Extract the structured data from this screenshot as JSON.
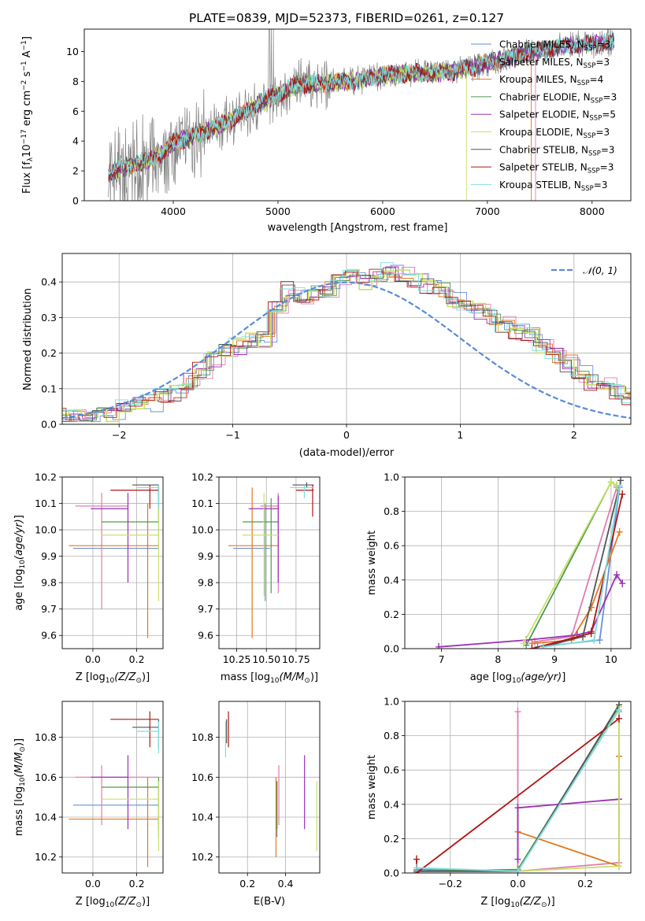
{
  "title": "PLATE=0839, MJD=52373, FIBERID=0261, z=0.127",
  "colors": {
    "data": "#808080",
    "chabrier_miles": "#6a8fd8",
    "salpeter_miles": "#e07cb0",
    "kroupa_miles": "#e07a20",
    "chabrier_elodie": "#4d9a4d",
    "salpeter_elodie": "#9a30b4",
    "kroupa_elodie": "#c8e06a",
    "chabrier_stelib": "#555555",
    "salpeter_stelib": "#b01515",
    "kroupa_stelib": "#7fdede",
    "normal": "#5b8bd6",
    "grid": "#b0b0b0"
  },
  "chart_data": [
    {
      "id": "spectrum",
      "type": "line",
      "xlabel": "wavelength [Angstrom, rest frame]",
      "ylabel_main": "Flux [f",
      "ylabel_sub": "λ",
      "ylabel_rest": "10",
      "ylabel_exp1": "−17",
      "ylabel_unit": " erg cm",
      "ylabel_exp2": "−2",
      "ylabel_s": " s",
      "ylabel_exp3": "−1",
      "ylabel_a": " A",
      "ylabel_exp4": "−1",
      "ylabel_end": "]",
      "xlim": [
        3150,
        8370
      ],
      "ylim": [
        0,
        11.5
      ],
      "xticks": [
        4000,
        5000,
        6000,
        7000,
        8000
      ],
      "yticks": [
        0,
        2,
        4,
        6,
        8,
        10
      ],
      "xtick_labels": [
        "4000",
        "5000",
        "6000",
        "7000",
        "8000"
      ],
      "ytick_labels": [
        "0",
        "2",
        "4",
        "6",
        "8",
        "10"
      ],
      "legend": [
        {
          "label": "Chabrier MILES, N",
          "sub": "SSP",
          "val": "=3",
          "color": "chabrier_miles"
        },
        {
          "label": "Salpeter MILES, N",
          "sub": "SSP",
          "val": "=3",
          "color": "salpeter_miles"
        },
        {
          "label": "Kroupa MILES, N",
          "sub": "SSP",
          "val": "=4",
          "color": "kroupa_miles"
        },
        {
          "label": "Chabrier ELODIE, N",
          "sub": "SSP",
          "val": "=3",
          "color": "chabrier_elodie"
        },
        {
          "label": "Salpeter ELODIE, N",
          "sub": "SSP",
          "val": "=5",
          "color": "salpeter_elodie"
        },
        {
          "label": "Kroupa ELODIE, N",
          "sub": "SSP",
          "val": "=3",
          "color": "kroupa_elodie"
        },
        {
          "label": "Chabrier STELIB, N",
          "sub": "SSP",
          "val": "=3",
          "color": "chabrier_stelib"
        },
        {
          "label": "Salpeter STELIB, N",
          "sub": "SSP",
          "val": "=3",
          "color": "salpeter_stelib"
        },
        {
          "label": "Kroupa STELIB, N",
          "sub": "SSP",
          "val": "=3",
          "color": "kroupa_stelib"
        }
      ],
      "continuum": [
        [
          3380,
          1.85
        ],
        [
          3500,
          2.2
        ],
        [
          3700,
          2.6
        ],
        [
          3900,
          3.2
        ],
        [
          4000,
          3.9
        ],
        [
          4300,
          4.6
        ],
        [
          4600,
          5.6
        ],
        [
          4900,
          6.8
        ],
        [
          5200,
          7.8
        ],
        [
          5500,
          7.9
        ],
        [
          5800,
          8.1
        ],
        [
          6000,
          8.4
        ],
        [
          6300,
          8.55
        ],
        [
          6600,
          8.6
        ],
        [
          6900,
          9.0
        ],
        [
          7200,
          9.6
        ],
        [
          7500,
          10.1
        ],
        [
          7800,
          10.4
        ],
        [
          8000,
          10.5
        ],
        [
          8200,
          10.6
        ]
      ],
      "model_ends": {
        "kroupa_elodie": 6800,
        "kroupa_miles": 7420,
        "salpeter_miles": 7460,
        "stelib": 8210
      }
    },
    {
      "id": "residuals",
      "type": "histogram",
      "xlabel": "(data-model)/error",
      "ylabel": "Normed distribution",
      "xlim": [
        -2.5,
        2.5
      ],
      "ylim": [
        0,
        0.48
      ],
      "xticks": [
        -2,
        -1,
        0,
        1,
        2
      ],
      "yticks": [
        0,
        0.1,
        0.2,
        0.3,
        0.4
      ],
      "xtick_labels": [
        "−2",
        "−1",
        "0",
        "1",
        "2"
      ],
      "ytick_labels": [
        "0.0",
        "0.1",
        "0.2",
        "0.3",
        "0.4"
      ],
      "legend_label": "𝒩(0, 1)",
      "bin_width": 0.1111,
      "base_hist": [
        0.02,
        0.02,
        0.02,
        0.03,
        0.03,
        0.05,
        0.06,
        0.06,
        0.08,
        0.09,
        0.12,
        0.15,
        0.18,
        0.2,
        0.22,
        0.24,
        0.24,
        0.33,
        0.38,
        0.36,
        0.37,
        0.38,
        0.4,
        0.41,
        0.4,
        0.42,
        0.43,
        0.42,
        0.4,
        0.39,
        0.38,
        0.35,
        0.33,
        0.32,
        0.3,
        0.28,
        0.26,
        0.25,
        0.22,
        0.19,
        0.17,
        0.14,
        0.12,
        0.11,
        0.09,
        0.07,
        0.06,
        0.05,
        0.04,
        0.03,
        0.03,
        0.02,
        0.02,
        0.02,
        0.02
      ]
    },
    {
      "id": "age_vs_Z",
      "type": "errorbar",
      "xlabel": "Z [log",
      "ylabel": "age  [log",
      "xlim": [
        -0.14,
        0.32
      ],
      "ylim": [
        9.55,
        10.2
      ],
      "xticks": [
        0,
        0.2
      ],
      "yticks": [
        9.6,
        9.7,
        9.8,
        9.9,
        10.0,
        10.1,
        10.2
      ],
      "xtick_labels": [
        "0.0",
        "0.2"
      ],
      "ytick_labels": [
        "9.6",
        "9.7",
        "9.8",
        "9.9",
        "10.0",
        "10.1",
        "10.2"
      ],
      "points": [
        {
          "c": "chabrier_miles",
          "x": 0.3,
          "xlo": -0.09,
          "xhi": 0.3,
          "y": 9.93,
          "ylo": 9.93,
          "yhi": 10.17
        },
        {
          "c": "salpeter_miles",
          "x": 0.04,
          "xlo": -0.08,
          "xhi": 0.16,
          "y": 10.09,
          "ylo": 9.7,
          "yhi": 10.14
        },
        {
          "c": "kroupa_miles",
          "x": 0.25,
          "xlo": -0.11,
          "xhi": 0.3,
          "y": 9.94,
          "ylo": 9.59,
          "yhi": 10.1
        },
        {
          "c": "chabrier_elodie",
          "x": 0.3,
          "xlo": 0.04,
          "xhi": 0.3,
          "y": 10.03,
          "ylo": 10.03,
          "yhi": 10.17
        },
        {
          "c": "salpeter_elodie",
          "x": 0.16,
          "xlo": -0.01,
          "xhi": 0.16,
          "y": 10.08,
          "ylo": 9.8,
          "yhi": 10.14
        },
        {
          "c": "kroupa_elodie",
          "x": 0.3,
          "xlo": 0.04,
          "xhi": 0.3,
          "y": 9.98,
          "ylo": 9.73,
          "yhi": 10.14
        },
        {
          "c": "chabrier_stelib",
          "x": 0.3,
          "xlo": 0.18,
          "xhi": 0.3,
          "y": 10.17,
          "ylo": 10.09,
          "yhi": 10.17
        },
        {
          "c": "salpeter_stelib",
          "x": 0.26,
          "xlo": 0.08,
          "xhi": 0.3,
          "y": 10.15,
          "ylo": 10.08,
          "yhi": 10.17
        },
        {
          "c": "kroupa_stelib",
          "x": 0.3,
          "xlo": 0.2,
          "xhi": 0.3,
          "y": 10.16,
          "ylo": 10.08,
          "yhi": 10.17
        }
      ]
    },
    {
      "id": "age_vs_mass",
      "type": "errorbar",
      "xlabel": "mass [log",
      "xlim": [
        10.1,
        10.95
      ],
      "ylim": [
        9.55,
        10.2
      ],
      "xticks": [
        10.25,
        10.5,
        10.75
      ],
      "yticks": [
        9.6,
        9.7,
        9.8,
        9.9,
        10.0,
        10.1,
        10.2
      ],
      "xtick_labels": [
        "10.25",
        "10.50",
        "10.75"
      ],
      "ytick_labels": [
        "9.6",
        "9.7",
        "9.8",
        "9.9",
        "10.0",
        "10.1",
        "10.2"
      ],
      "points": [
        {
          "c": "chabrier_miles",
          "x": 10.49,
          "xlo": 10.22,
          "xhi": 10.53,
          "y": 9.93,
          "ylo": 9.73,
          "yhi": 10.1
        },
        {
          "c": "salpeter_miles",
          "x": 10.6,
          "xlo": 10.45,
          "xhi": 10.6,
          "y": 10.09,
          "ylo": 9.76,
          "yhi": 10.14
        },
        {
          "c": "kroupa_miles",
          "x": 10.38,
          "xlo": 10.18,
          "xhi": 10.6,
          "y": 9.94,
          "ylo": 9.59,
          "yhi": 10.16
        },
        {
          "c": "chabrier_elodie",
          "x": 10.54,
          "xlo": 10.3,
          "xhi": 10.6,
          "y": 10.03,
          "ylo": 9.76,
          "yhi": 10.12
        },
        {
          "c": "salpeter_elodie",
          "x": 10.6,
          "xlo": 10.35,
          "xhi": 10.6,
          "y": 10.08,
          "ylo": 9.8,
          "yhi": 10.13
        },
        {
          "c": "kroupa_elodie",
          "x": 10.48,
          "xlo": 10.3,
          "xhi": 10.6,
          "y": 9.98,
          "ylo": 9.75,
          "yhi": 10.14
        },
        {
          "c": "chabrier_stelib",
          "x": 10.84,
          "xlo": 10.72,
          "xhi": 10.9,
          "y": 10.17,
          "ylo": 10.16,
          "yhi": 10.18
        },
        {
          "c": "salpeter_stelib",
          "x": 10.89,
          "xlo": 10.75,
          "xhi": 10.9,
          "y": 10.15,
          "ylo": 10.05,
          "yhi": 10.17
        },
        {
          "c": "kroupa_stelib",
          "x": 10.82,
          "xlo": 10.7,
          "xhi": 10.9,
          "y": 10.16,
          "ylo": 10.12,
          "yhi": 10.17
        }
      ]
    },
    {
      "id": "mass_weight_vs_age",
      "type": "line",
      "xlabel": "age  [log",
      "ylabel": "mass weight",
      "xlim": [
        6.35,
        10.35
      ],
      "ylim": [
        0,
        1.0
      ],
      "xticks": [
        7,
        8,
        9,
        10
      ],
      "yticks": [
        0,
        0.2,
        0.4,
        0.6,
        0.8,
        1.0
      ],
      "xtick_labels": [
        "7",
        "8",
        "9",
        "10"
      ],
      "ytick_labels": [
        "0.0",
        "0.2",
        "0.4",
        "0.6",
        "0.8",
        "1.0"
      ],
      "series": [
        {
          "c": "chabrier_miles",
          "x": [
            8.7,
            9.8,
            10.15
          ],
          "y": [
            0.01,
            0.05,
            0.94
          ]
        },
        {
          "c": "salpeter_miles",
          "x": [
            8.65,
            9.3,
            10.1
          ],
          "y": [
            0.04,
            0.07,
            0.94
          ]
        },
        {
          "c": "kroupa_miles",
          "x": [
            8.6,
            9.3,
            9.65,
            10.15
          ],
          "y": [
            0.03,
            0.05,
            0.24,
            0.68
          ]
        },
        {
          "c": "chabrier_elodie",
          "x": [
            8.5,
            10.0,
            10.1
          ],
          "y": [
            0.02,
            0.97,
            0.95
          ]
        },
        {
          "c": "salpeter_elodie",
          "x": [
            6.95,
            8.5,
            9.4,
            9.65,
            10.1,
            10.2
          ],
          "y": [
            0.01,
            0.05,
            0.08,
            0.1,
            0.43,
            0.38
          ]
        },
        {
          "c": "kroupa_elodie",
          "x": [
            8.45,
            10.0,
            10.1
          ],
          "y": [
            0.03,
            0.97,
            0.95
          ]
        },
        {
          "c": "chabrier_stelib",
          "x": [
            8.8,
            9.5,
            10.17
          ],
          "y": [
            0.01,
            0.07,
            0.98
          ]
        },
        {
          "c": "salpeter_stelib",
          "x": [
            8.6,
            9.65,
            10.2
          ],
          "y": [
            0.0,
            0.09,
            0.9
          ]
        },
        {
          "c": "kroupa_stelib",
          "x": [
            8.8,
            9.7,
            10.15
          ],
          "y": [
            0.01,
            0.05,
            0.95
          ]
        }
      ]
    },
    {
      "id": "mass_vs_Z",
      "type": "errorbar",
      "xlabel": "Z [log",
      "ylabel": "mass [log",
      "xlim": [
        -0.14,
        0.32
      ],
      "ylim": [
        10.12,
        10.98
      ],
      "xticks": [
        0,
        0.2
      ],
      "yticks": [
        10.2,
        10.4,
        10.6,
        10.8
      ],
      "xtick_labels": [
        "0.0",
        "0.2"
      ],
      "ytick_labels": [
        "10.2",
        "10.4",
        "10.6",
        "10.8"
      ],
      "points": [
        {
          "c": "chabrier_miles",
          "x": 0.3,
          "xlo": -0.09,
          "xhi": 0.3,
          "y": 10.46,
          "ylo": 10.3,
          "yhi": 10.58
        },
        {
          "c": "salpeter_miles",
          "x": 0.04,
          "xlo": -0.08,
          "xhi": 0.3,
          "y": 10.6,
          "ylo": 10.36,
          "yhi": 10.66
        },
        {
          "c": "kroupa_miles",
          "x": 0.25,
          "xlo": -0.11,
          "xhi": 0.3,
          "y": 10.39,
          "ylo": 10.15,
          "yhi": 10.6
        },
        {
          "c": "chabrier_elodie",
          "x": 0.3,
          "xlo": 0.04,
          "xhi": 0.3,
          "y": 10.55,
          "ylo": 10.34,
          "yhi": 10.6
        },
        {
          "c": "salpeter_elodie",
          "x": 0.16,
          "xlo": -0.01,
          "xhi": 0.16,
          "y": 10.6,
          "ylo": 10.34,
          "yhi": 10.71
        },
        {
          "c": "kroupa_elodie",
          "x": 0.3,
          "xlo": 0.04,
          "xhi": 0.3,
          "y": 10.49,
          "ylo": 10.23,
          "yhi": 10.58
        },
        {
          "c": "chabrier_stelib",
          "x": 0.3,
          "xlo": 0.18,
          "xhi": 0.3,
          "y": 10.85,
          "ylo": 10.74,
          "yhi": 10.89
        },
        {
          "c": "salpeter_stelib",
          "x": 0.26,
          "xlo": 0.08,
          "xhi": 0.3,
          "y": 10.89,
          "ylo": 10.75,
          "yhi": 10.93
        },
        {
          "c": "kroupa_stelib",
          "x": 0.3,
          "xlo": 0.2,
          "xhi": 0.3,
          "y": 10.83,
          "ylo": 10.72,
          "yhi": 10.88
        }
      ]
    },
    {
      "id": "mass_vs_ebv",
      "type": "errorbar",
      "xlabel": "E(B-V)",
      "xlim": [
        0.05,
        0.58
      ],
      "ylim": [
        10.12,
        10.98
      ],
      "xticks": [
        0.2,
        0.4
      ],
      "yticks": [
        10.2,
        10.4,
        10.6,
        10.8
      ],
      "xtick_labels": [
        "0.2",
        "0.4"
      ],
      "ytick_labels": [
        "10.2",
        "10.4",
        "10.6",
        "10.8"
      ],
      "points": [
        {
          "c": "chabrier_miles",
          "x": 0.355,
          "xlo": 0.355,
          "xhi": 0.355,
          "y": 10.46,
          "ylo": 10.3,
          "yhi": 10.58
        },
        {
          "c": "salpeter_miles",
          "x": 0.365,
          "xlo": 0.365,
          "xhi": 0.365,
          "y": 10.6,
          "ylo": 10.36,
          "yhi": 10.66
        },
        {
          "c": "kroupa_miles",
          "x": 0.35,
          "xlo": 0.35,
          "xhi": 0.35,
          "y": 10.39,
          "ylo": 10.2,
          "yhi": 10.6
        },
        {
          "c": "chabrier_elodie",
          "x": 0.355,
          "xlo": 0.355,
          "xhi": 0.355,
          "y": 10.5,
          "ylo": 10.34,
          "yhi": 10.58
        },
        {
          "c": "salpeter_elodie",
          "x": 0.5,
          "xlo": 0.5,
          "xhi": 0.5,
          "y": 10.6,
          "ylo": 10.34,
          "yhi": 10.71
        },
        {
          "c": "kroupa_elodie",
          "x": 0.565,
          "xlo": 0.565,
          "xhi": 0.565,
          "y": 10.49,
          "ylo": 10.23,
          "yhi": 10.58
        },
        {
          "c": "chabrier_stelib",
          "x": 0.09,
          "xlo": 0.09,
          "xhi": 0.09,
          "y": 10.85,
          "ylo": 10.77,
          "yhi": 10.89
        },
        {
          "c": "salpeter_stelib",
          "x": 0.1,
          "xlo": 0.1,
          "xhi": 0.1,
          "y": 10.89,
          "ylo": 10.75,
          "yhi": 10.93
        },
        {
          "c": "kroupa_stelib",
          "x": 0.085,
          "xlo": 0.085,
          "xhi": 0.085,
          "y": 10.83,
          "ylo": 10.7,
          "yhi": 10.88
        }
      ]
    },
    {
      "id": "mass_weight_vs_Z",
      "type": "line",
      "xlabel": "Z [log",
      "ylabel": "mass weight",
      "xlim": [
        -0.335,
        0.335
      ],
      "ylim": [
        0,
        1.0
      ],
      "xticks": [
        -0.2,
        0,
        0.2
      ],
      "yticks": [
        0,
        0.2,
        0.4,
        0.6,
        0.8,
        1.0
      ],
      "xtick_labels": [
        "−0.2",
        "0.0",
        "0.2"
      ],
      "ytick_labels": [
        "0.0",
        "0.2",
        "0.4",
        "0.6",
        "0.8",
        "1.0"
      ],
      "series": [
        {
          "c": "chabrier_miles",
          "x": [
            -0.3,
            0.0,
            0.3
          ],
          "y": [
            0.02,
            0.01,
            0.95
          ]
        },
        {
          "c": "salpeter_miles",
          "x": [
            0.0,
            0.0,
            0.3,
            0.3
          ],
          "y": [
            0.94,
            0.01,
            0.06,
            0.94
          ]
        },
        {
          "c": "kroupa_miles",
          "x": [
            0.0,
            0.3,
            0.3
          ],
          "y": [
            0.24,
            0.04,
            0.68
          ]
        },
        {
          "c": "chabrier_elodie",
          "x": [
            -0.3,
            0.0,
            0.3
          ],
          "y": [
            0.01,
            0.02,
            0.97
          ]
        },
        {
          "c": "salpeter_elodie",
          "x": [
            0.0,
            0.0,
            0.3
          ],
          "y": [
            0.08,
            0.38,
            0.43
          ]
        },
        {
          "c": "kroupa_elodie",
          "x": [
            0.0,
            0.3,
            0.3
          ],
          "y": [
            0.01,
            0.04,
            0.97
          ]
        },
        {
          "c": "chabrier_stelib",
          "x": [
            -0.3,
            0.0,
            0.3
          ],
          "y": [
            0.01,
            0.01,
            0.98
          ]
        },
        {
          "c": "salpeter_stelib",
          "x": [
            -0.3,
            -0.3,
            0.3
          ],
          "y": [
            0.08,
            0.0,
            0.9
          ]
        },
        {
          "c": "kroupa_stelib",
          "x": [
            -0.3,
            0.0,
            0.3
          ],
          "y": [
            0.03,
            0.01,
            0.95
          ]
        }
      ]
    }
  ]
}
